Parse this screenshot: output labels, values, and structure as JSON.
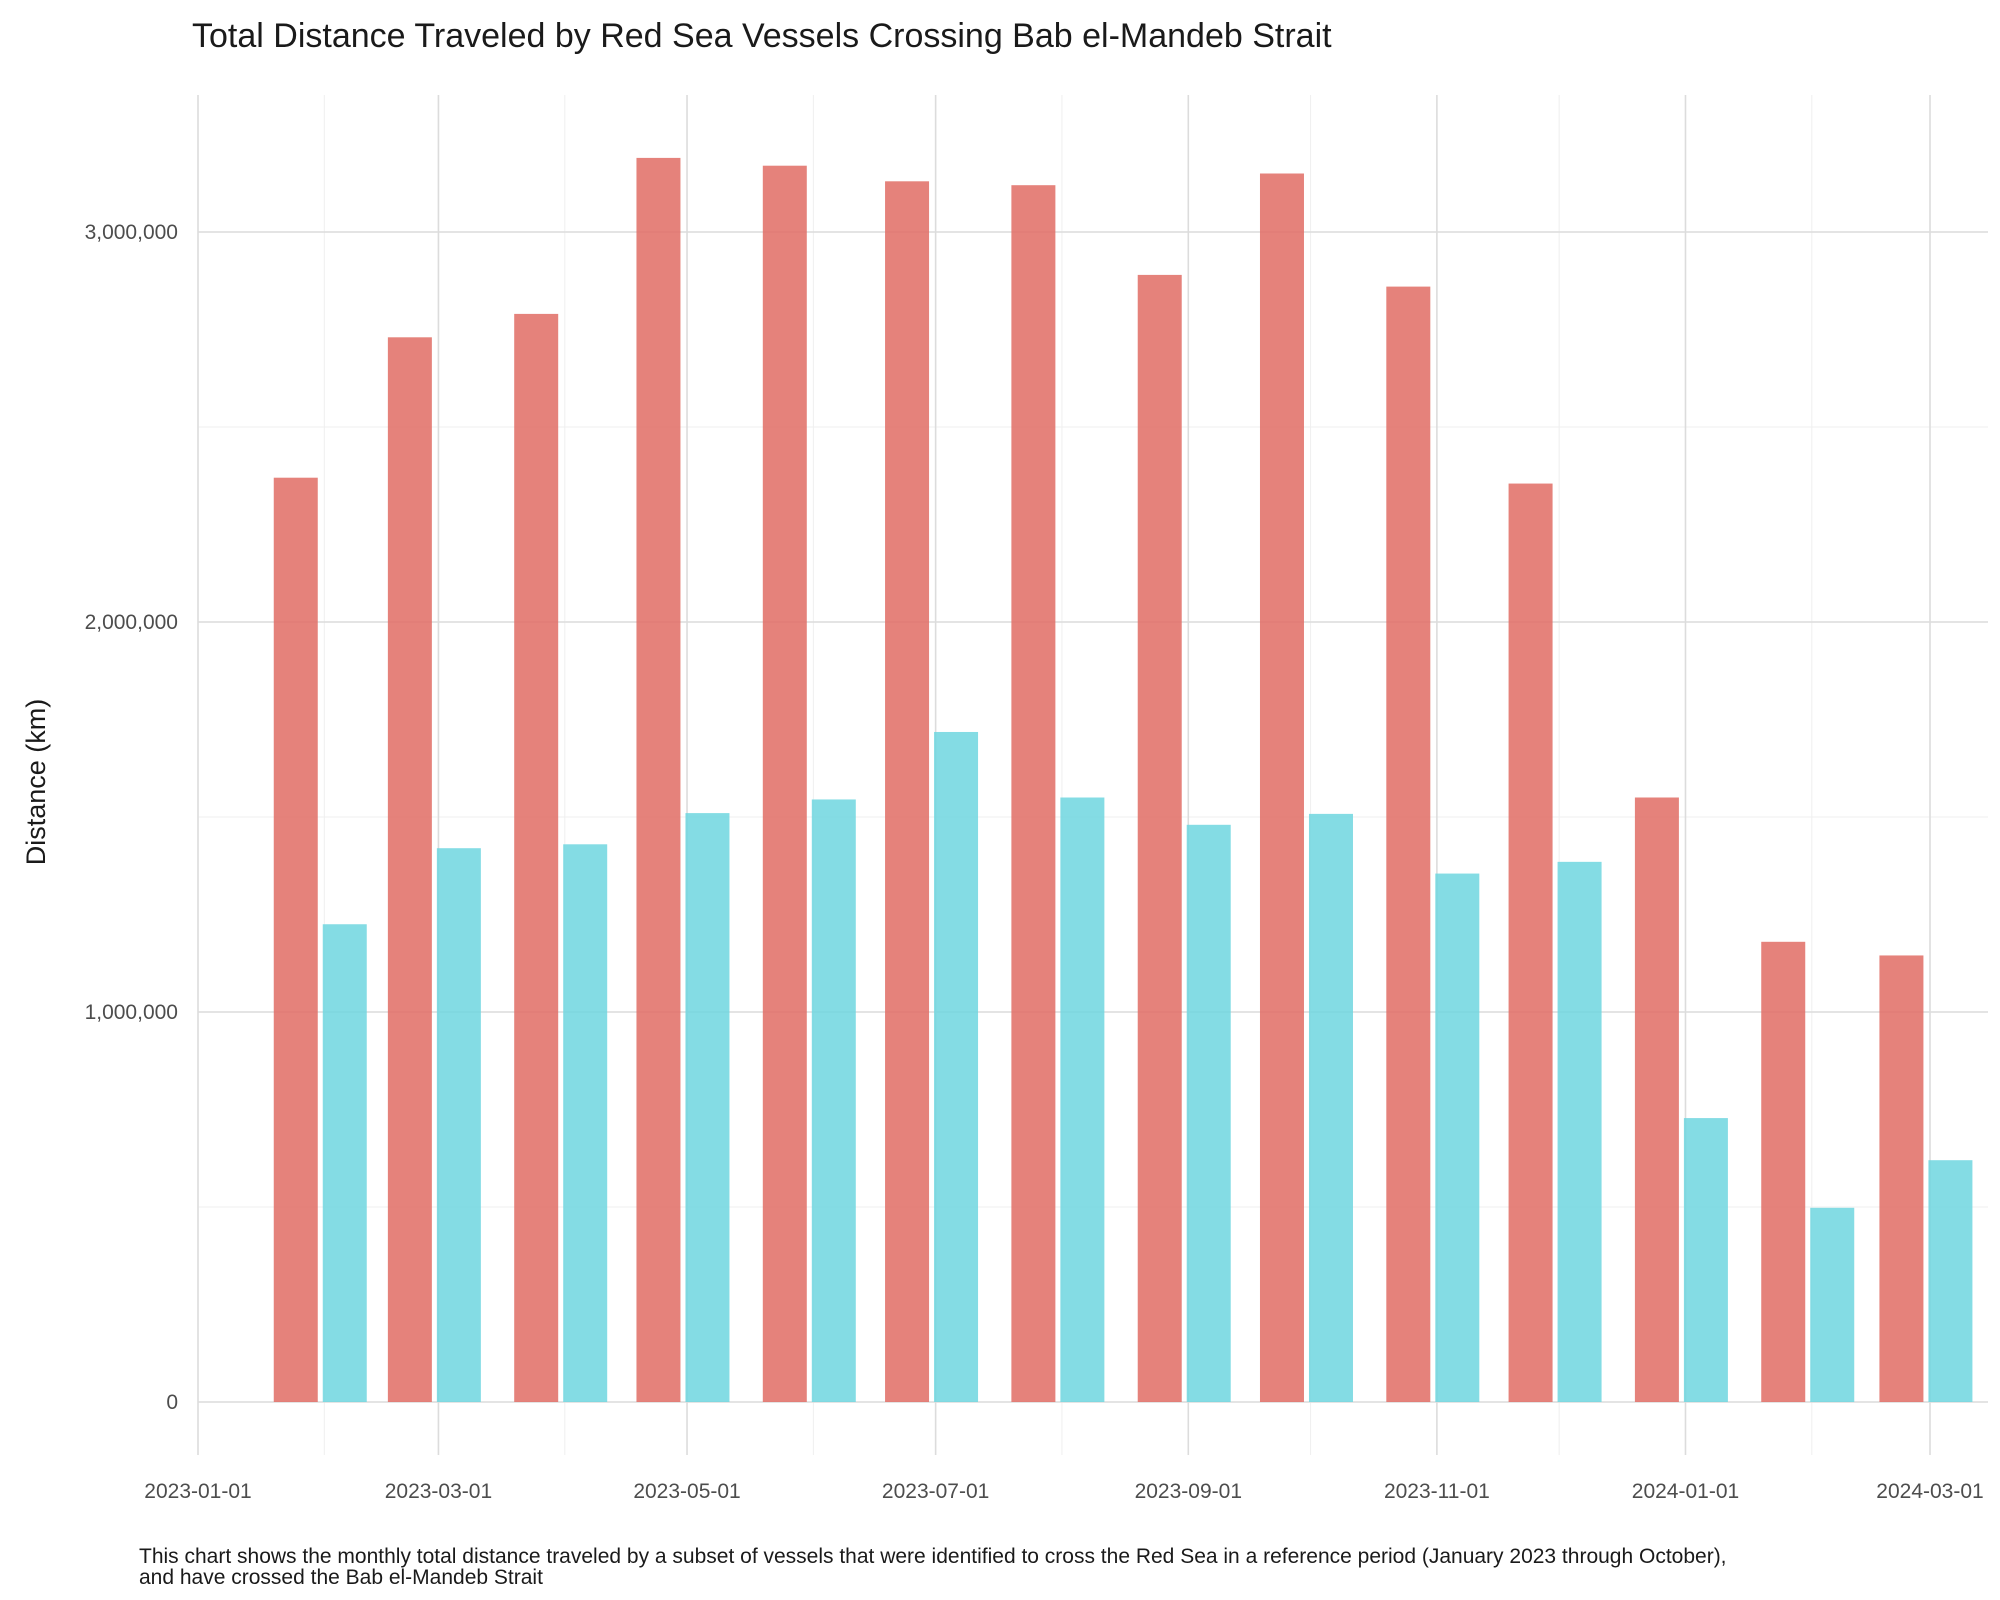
{
  "chart_data": {
    "type": "bar",
    "title": "Total Distance Traveled by Red Sea Vessels Crossing Bab el-Mandeb Strait",
    "ylabel": "Distance (km)",
    "xlabel": "",
    "caption_lines": [
      "This chart shows the monthly total distance traveled by a subset of vessels that were identified to cross the Red Sea in a reference period (January 2023 through October),",
      "and have crossed the Bab el-Mandeb Strait"
    ],
    "ylim": [
      0,
      3350000
    ],
    "y_ticks": [
      0,
      1000000,
      2000000,
      3000000
    ],
    "y_tick_labels": [
      "0",
      "1,000,000",
      "2,000,000",
      "3,000,000"
    ],
    "x_ticks": [
      "2023-01-01",
      "2023-03-01",
      "2023-05-01",
      "2023-07-01",
      "2023-09-01",
      "2023-11-01",
      "2024-01-01",
      "2024-03-01"
    ],
    "x_minor_ticks": [
      "2023-02-01",
      "2023-04-01",
      "2023-06-01",
      "2023-08-01",
      "2023-10-01",
      "2023-12-01",
      "2024-02-01"
    ],
    "xlim": [
      "2023-01-01",
      "2024-04-10"
    ],
    "grid": true,
    "legend": "none",
    "categories": [
      "2023-01-31",
      "2023-02-28",
      "2023-03-31",
      "2023-04-30",
      "2023-05-31",
      "2023-06-30",
      "2023-07-31",
      "2023-08-31",
      "2023-09-30",
      "2023-10-31",
      "2023-11-30",
      "2023-12-31",
      "2024-01-31",
      "2024-02-29"
    ],
    "series": [
      {
        "color": "#E06C64",
        "values": [
          2370000,
          2730000,
          2790000,
          3190000,
          3170000,
          3130000,
          3120000,
          2890000,
          3150000,
          2860000,
          2355000,
          1550000,
          1180000,
          1145000
        ]
      },
      {
        "color": "#6ED6DF",
        "values": [
          1225000,
          1420000,
          1430000,
          1510000,
          1545000,
          1718000,
          1550000,
          1480000,
          1508000,
          1355000,
          1385000,
          728000,
          498000,
          620000
        ]
      }
    ]
  }
}
